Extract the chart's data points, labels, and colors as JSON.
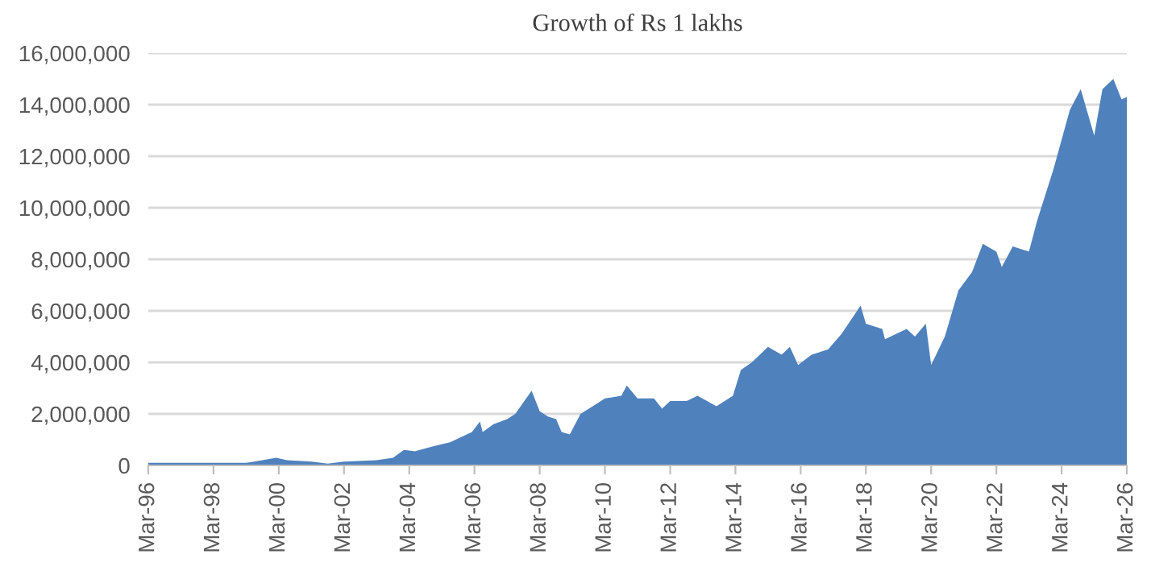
{
  "chart_data": {
    "type": "area",
    "title": "Growth of Rs 1 lakhs",
    "color": "#4f81bd",
    "grid": "y",
    "legend": false,
    "x": [
      "1996-03",
      "1999-03",
      "1999-06",
      "2000-02",
      "2000-06",
      "2001-03",
      "2001-09",
      "2002-03",
      "2003-03",
      "2003-09",
      "2004-01",
      "2004-05",
      "2004-12",
      "2005-06",
      "2006-02",
      "2006-05",
      "2006-06",
      "2006-10",
      "2007-03",
      "2007-06",
      "2007-12",
      "2008-03",
      "2008-06",
      "2008-09",
      "2008-11",
      "2009-02",
      "2009-06",
      "2009-12",
      "2010-03",
      "2010-09",
      "2010-11",
      "2011-03",
      "2011-09",
      "2011-12",
      "2012-03",
      "2012-09",
      "2013-01",
      "2013-08",
      "2014-02",
      "2014-05",
      "2014-09",
      "2015-03",
      "2015-08",
      "2015-11",
      "2016-02",
      "2016-07",
      "2017-01",
      "2017-06",
      "2018-01",
      "2018-03",
      "2018-09",
      "2018-10",
      "2019-02",
      "2019-06",
      "2019-09",
      "2020-01",
      "2020-03",
      "2020-08",
      "2021-01",
      "2021-06",
      "2021-10",
      "2022-03",
      "2022-05",
      "2022-09",
      "2023-03",
      "2023-06",
      "2023-12",
      "2024-06",
      "2024-10",
      "2025-03",
      "2025-06",
      "2025-10",
      "2026-01",
      "2026-03"
    ],
    "values": [
      100000,
      100000,
      150000,
      300000,
      200000,
      150000,
      70000,
      150000,
      200000,
      300000,
      600000,
      550000,
      750000,
      900000,
      1300000,
      1700000,
      1300000,
      1600000,
      1800000,
      2000000,
      2900000,
      2100000,
      1900000,
      1800000,
      1300000,
      1200000,
      2000000,
      2400000,
      2600000,
      2700000,
      3100000,
      2600000,
      2600000,
      2200000,
      2500000,
      2500000,
      2700000,
      2300000,
      2700000,
      3700000,
      4000000,
      4600000,
      4300000,
      4600000,
      3900000,
      4300000,
      4500000,
      5100000,
      6200000,
      5500000,
      5300000,
      4900000,
      5100000,
      5300000,
      5000000,
      5500000,
      3900000,
      5000000,
      6800000,
      7500000,
      8600000,
      8300000,
      7700000,
      8500000,
      8300000,
      9500000,
      11500000,
      13800000,
      14600000,
      12800000,
      14600000,
      15000000,
      14200000,
      14300000
    ],
    "xlim": [
      "1996-03",
      "2026-03"
    ],
    "xticks": [
      {
        "value": "1996-03",
        "label": "Mar-96"
      },
      {
        "value": "1998-03",
        "label": "Mar-98"
      },
      {
        "value": "2000-03",
        "label": "Mar-00"
      },
      {
        "value": "2002-03",
        "label": "Mar-02"
      },
      {
        "value": "2004-03",
        "label": "Mar-04"
      },
      {
        "value": "2006-03",
        "label": "Mar-06"
      },
      {
        "value": "2008-03",
        "label": "Mar-08"
      },
      {
        "value": "2010-03",
        "label": "Mar-10"
      },
      {
        "value": "2012-03",
        "label": "Mar-12"
      },
      {
        "value": "2014-03",
        "label": "Mar-14"
      },
      {
        "value": "2016-03",
        "label": "Mar-16"
      },
      {
        "value": "2018-03",
        "label": "Mar-18"
      },
      {
        "value": "2020-03",
        "label": "Mar-20"
      },
      {
        "value": "2022-03",
        "label": "Mar-22"
      },
      {
        "value": "2024-03",
        "label": "Mar-24"
      },
      {
        "value": "2026-03",
        "label": "Mar-26"
      }
    ],
    "ylim": [
      0,
      16000000
    ],
    "yticks": [
      {
        "value": 0,
        "label": "0"
      },
      {
        "value": 2000000,
        "label": "2,000,000"
      },
      {
        "value": 4000000,
        "label": "4,000,000"
      },
      {
        "value": 6000000,
        "label": "6,000,000"
      },
      {
        "value": 8000000,
        "label": "8,000,000"
      },
      {
        "value": 10000000,
        "label": "10,000,000"
      },
      {
        "value": 12000000,
        "label": "12,000,000"
      },
      {
        "value": 14000000,
        "label": "14,000,000"
      },
      {
        "value": 16000000,
        "label": "16,000,000"
      }
    ]
  }
}
